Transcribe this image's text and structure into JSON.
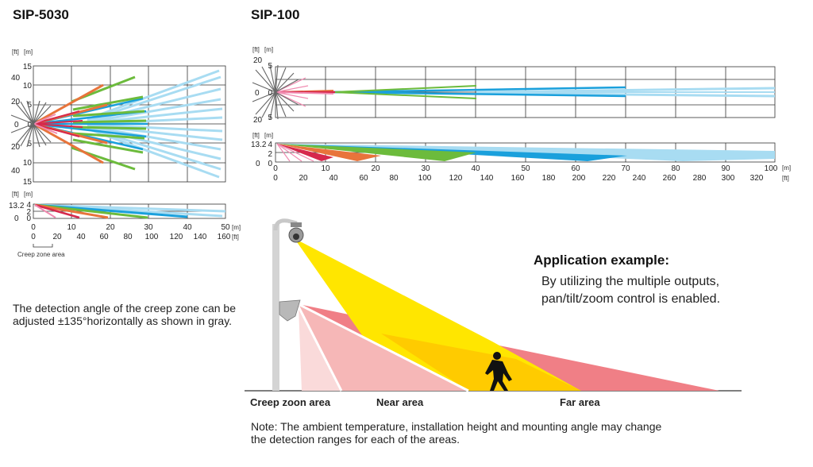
{
  "left_panel": {
    "title": "SIP-5030",
    "top_view": {
      "unit_ft": "[ft]",
      "unit_m": "[m]",
      "ft_ticks": [
        "40",
        "20",
        "0",
        "20",
        "40"
      ],
      "m_ticks": [
        "15",
        "10",
        "5",
        "0",
        "5",
        "10",
        "15"
      ]
    },
    "side_view": {
      "unit_ft": "[ft]",
      "unit_m": "[m]",
      "ft_ticks": [
        "13.2",
        "0"
      ],
      "m_ticks": [
        "4",
        "2",
        "0"
      ]
    },
    "x_axis_m": [
      "0",
      "10",
      "20",
      "30",
      "40",
      "50"
    ],
    "x_axis_ft": [
      "0",
      "20",
      "40",
      "60",
      "80",
      "100",
      "120",
      "140",
      "160"
    ],
    "x_unit_m": "[m]",
    "x_unit_ft": "[ft]",
    "creep_zone_label": "Creep zone area"
  },
  "right_panel": {
    "title": "SIP-100",
    "top_view": {
      "unit_ft": "[ft]",
      "unit_m": "[m]",
      "ft_ticks": [
        "20",
        "0",
        "20"
      ],
      "m_ticks": [
        "5",
        "0",
        "5"
      ]
    },
    "side_view": {
      "unit_ft": "[ft]",
      "unit_m": "[m]",
      "ft_ticks": [
        "13.2",
        "0"
      ],
      "m_ticks": [
        "4",
        "2",
        "0"
      ]
    },
    "x_axis_m": [
      "0",
      "10",
      "20",
      "30",
      "40",
      "50",
      "60",
      "70",
      "80",
      "90",
      "100"
    ],
    "x_axis_ft": [
      "0",
      "20",
      "40",
      "60",
      "80",
      "100",
      "120",
      "140",
      "160",
      "180",
      "200",
      "220",
      "240",
      "260",
      "280",
      "300",
      "320"
    ],
    "x_unit_m": "[m]",
    "x_unit_ft": "[ft]"
  },
  "creep_note": "The detection angle of the creep zone can be adjusted ±135°horizontally as shown in gray.",
  "application": {
    "title": "Application example:",
    "text": "By utilizing the multiple outputs, pan/tilt/zoom control is enabled."
  },
  "area_labels": {
    "creep": "Creep zoon area",
    "near": "Near area",
    "far": "Far area"
  },
  "note": "Note: The ambient temperature, installation height and mounting angle may change the detection ranges for each of the areas.",
  "colors": {
    "blue": "#1aa0dc",
    "light_blue": "#a8dcf2",
    "green": "#6cbb3c",
    "orange": "#e8743b",
    "red": "#d6284c",
    "pink": "#f08ab0",
    "gray": "#666666",
    "yellow": "#ffe600",
    "far_red": "#f07f86",
    "near_pink": "#f6b7b7",
    "creep_pink": "#fadada"
  }
}
